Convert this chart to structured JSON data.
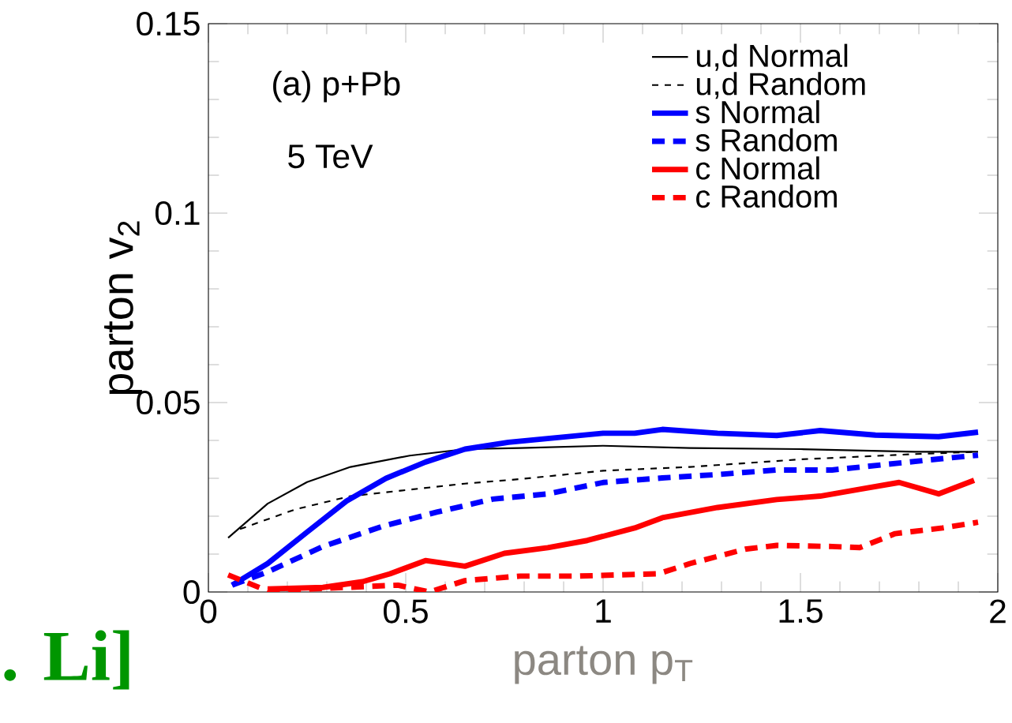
{
  "chart_data": {
    "type": "line",
    "xlabel": "parton p$_{T}$",
    "ylabel": "parton v$_{2}$",
    "xlim": [
      0,
      2
    ],
    "ylim": [
      0,
      0.15
    ],
    "xticks": [
      0,
      0.5,
      1,
      1.5,
      2
    ],
    "yticks": [
      0,
      0.05,
      0.1,
      0.15
    ],
    "legend": "top right",
    "grid": false,
    "marker": "none",
    "annotations": [
      "(a) p+Pb",
      "5 TeV",
      ". Li]"
    ],
    "series": [
      {
        "name": "u,d Normal",
        "color": "#000000",
        "line_style": "solid",
        "x": [
          0.05,
          0.15,
          0.25,
          0.36,
          0.51,
          0.65,
          0.79,
          1.0,
          1.22,
          1.5,
          1.79,
          1.95
        ],
        "values": [
          0.0143,
          0.0233,
          0.029,
          0.033,
          0.036,
          0.0377,
          0.038,
          0.0386,
          0.038,
          0.0377,
          0.037,
          0.037
        ]
      },
      {
        "name": "u,d Random",
        "color": "#000000",
        "line_style": "dashed",
        "x": [
          0.08,
          0.22,
          0.36,
          0.51,
          0.65,
          0.79,
          1.0,
          1.22,
          1.5,
          1.79,
          1.95
        ],
        "values": [
          0.0166,
          0.0218,
          0.0253,
          0.027,
          0.0286,
          0.0298,
          0.032,
          0.033,
          0.035,
          0.0364,
          0.037
        ]
      },
      {
        "name": "s Normal",
        "color": "#0000ff",
        "line_style": "solid",
        "x": [
          0.06,
          0.15,
          0.25,
          0.35,
          0.45,
          0.55,
          0.65,
          0.76,
          0.88,
          1.0,
          1.08,
          1.15,
          1.29,
          1.44,
          1.55,
          1.69,
          1.85,
          1.95
        ],
        "values": [
          0.0018,
          0.0075,
          0.0158,
          0.024,
          0.03,
          0.0343,
          0.0377,
          0.0395,
          0.0407,
          0.0419,
          0.0419,
          0.0429,
          0.0419,
          0.0413,
          0.0426,
          0.0414,
          0.041,
          0.0422
        ]
      },
      {
        "name": "s Random",
        "color": "#0000ff",
        "line_style": "dashed",
        "x": [
          0.06,
          0.15,
          0.29,
          0.44,
          0.58,
          0.72,
          0.86,
          1.0,
          1.15,
          1.29,
          1.44,
          1.58,
          1.72,
          1.86,
          1.95
        ],
        "values": [
          0.0018,
          0.0053,
          0.012,
          0.0173,
          0.0211,
          0.0245,
          0.0259,
          0.0289,
          0.0301,
          0.031,
          0.0322,
          0.0322,
          0.0337,
          0.0352,
          0.0361
        ]
      },
      {
        "name": "c Normal",
        "color": "#ff0000",
        "line_style": "solid",
        "x": [
          0.15,
          0.29,
          0.39,
          0.46,
          0.55,
          0.65,
          0.75,
          0.86,
          0.96,
          1.08,
          1.15,
          1.29,
          1.44,
          1.55,
          1.65,
          1.75,
          1.85,
          1.94
        ],
        "values": [
          0.0008,
          0.0012,
          0.0027,
          0.0048,
          0.0083,
          0.0068,
          0.0102,
          0.0117,
          0.0136,
          0.0169,
          0.0196,
          0.0223,
          0.0244,
          0.0253,
          0.0271,
          0.0289,
          0.0259,
          0.0295
        ]
      },
      {
        "name": "c Random",
        "color": "#ff0000",
        "line_style": "dashed",
        "x": [
          0.05,
          0.15,
          0.48,
          0.56,
          0.65,
          0.79,
          0.94,
          1.14,
          1.22,
          1.36,
          1.44,
          1.58,
          1.65,
          1.74,
          1.86,
          1.95
        ],
        "values": [
          0.0045,
          0.0003,
          0.0018,
          0.0,
          0.003,
          0.0042,
          0.0042,
          0.0048,
          0.0075,
          0.0113,
          0.0123,
          0.012,
          0.0117,
          0.0154,
          0.0169,
          0.0184
        ]
      }
    ]
  }
}
